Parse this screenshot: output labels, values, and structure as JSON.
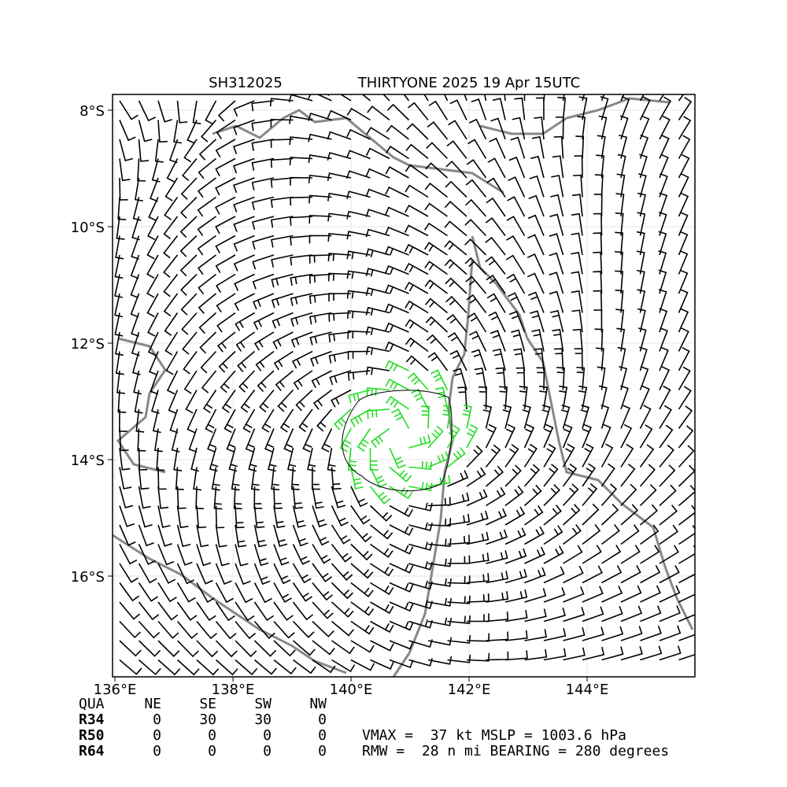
{
  "title": {
    "id": "SH312025",
    "name": "THIRTYONE 2025 19 Apr 15UTC"
  },
  "map": {
    "lat_labels": [
      "8°S",
      "10°S",
      "12°S",
      "14°S",
      "16°S"
    ],
    "lon_labels": [
      "136°E",
      "138°E",
      "140°E",
      "142°E",
      "144°E"
    ]
  },
  "table": {
    "header": [
      "QUA",
      "NE",
      "SE",
      "SW",
      "NW"
    ],
    "rows": [
      [
        "R34",
        0,
        30,
        30,
        0
      ],
      [
        "R50",
        0,
        0,
        0,
        0
      ],
      [
        "R64",
        0,
        0,
        0,
        0
      ]
    ]
  },
  "info": [
    "VMAX =  37 kt MSLP = 1003.6 hPa",
    "RMW =  28 n mi BEARING = 280 degrees"
  ]
}
